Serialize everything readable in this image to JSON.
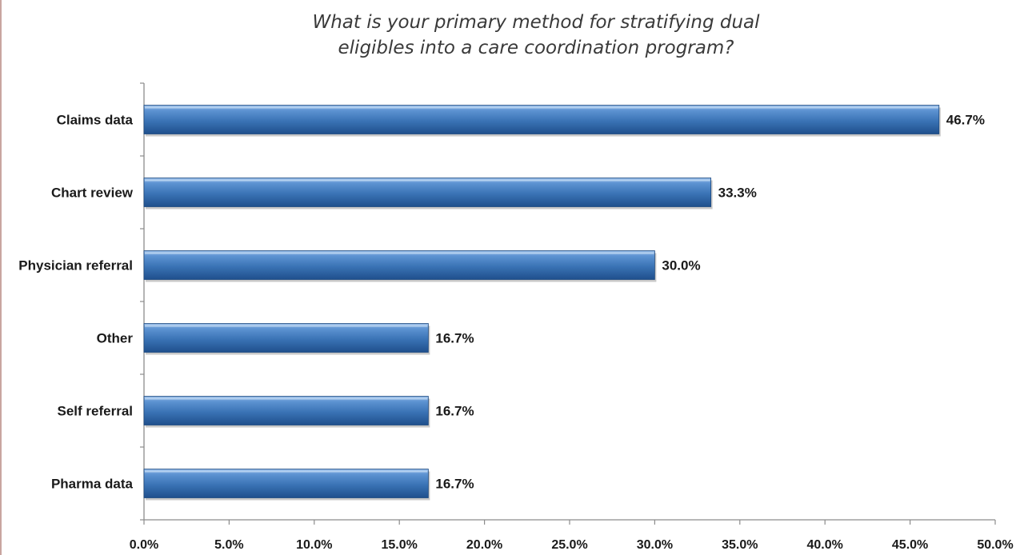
{
  "chart_data": {
    "type": "bar",
    "orientation": "horizontal",
    "title": [
      "What is your primary method for stratifying dual",
      "eligibles into a care coordination program?"
    ],
    "categories": [
      "Claims data",
      "Chart review",
      "Physician referral",
      "Other",
      "Self referral",
      "Pharma data"
    ],
    "values": [
      46.7,
      33.3,
      30.0,
      16.7,
      16.7,
      16.7
    ],
    "value_labels": [
      "46.7%",
      "33.3%",
      "30.0%",
      "16.7%",
      "16.7%",
      "16.7%"
    ],
    "xlim": [
      0,
      50
    ],
    "x_ticks": [
      "0.0%",
      "5.0%",
      "10.0%",
      "15.0%",
      "20.0%",
      "25.0%",
      "30.0%",
      "35.0%",
      "40.0%",
      "45.0%",
      "50.0%"
    ],
    "xlabel": "",
    "ylabel": "",
    "grid": false,
    "legend": "none",
    "bar_color": "#3a73b5"
  }
}
